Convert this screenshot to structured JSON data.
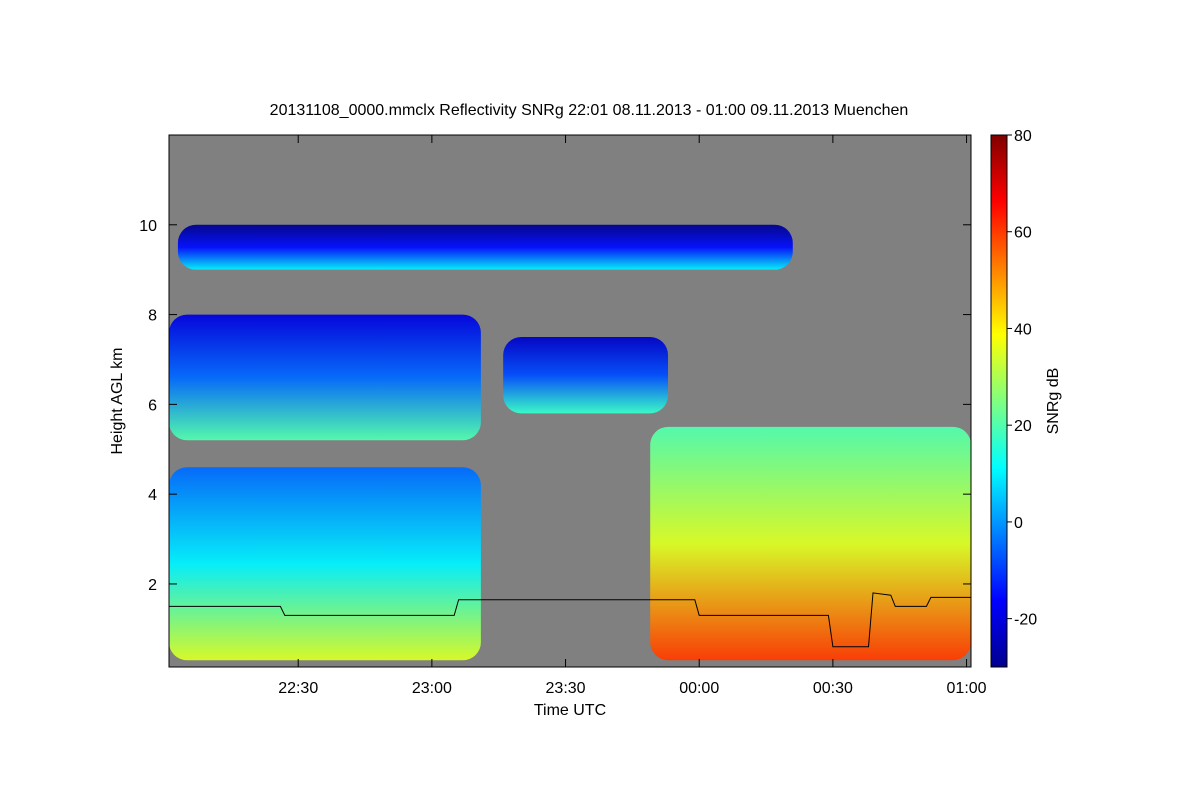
{
  "chart_data": {
    "type": "heatmap",
    "title": "20131108_0000.mmclx Reflectivity SNRg   22:01 08.11.2013 - 01:00 09.11.2013 Muenchen",
    "xlabel": "Time UTC",
    "ylabel": "Height AGL km",
    "colorbar_label": "SNRg dB",
    "x_ticks": [
      {
        "label": "22:30",
        "minutes": 29
      },
      {
        "label": "23:00",
        "minutes": 59
      },
      {
        "label": "23:30",
        "minutes": 89
      },
      {
        "label": "00:00",
        "minutes": 119
      },
      {
        "label": "00:30",
        "minutes": 149
      },
      {
        "label": "01:00",
        "minutes": 179
      }
    ],
    "x_range_minutes": [
      0,
      180
    ],
    "y_ticks": [
      2,
      4,
      6,
      8,
      10
    ],
    "y_range_km": [
      0.15,
      12.0
    ],
    "colorbar_ticks": [
      -20,
      0,
      20,
      40,
      60,
      80
    ],
    "colorbar_range": [
      -30,
      80
    ],
    "no_signal_color": "#808080",
    "colormap": [
      "#00008f",
      "#0000ff",
      "#0080ff",
      "#00ffff",
      "#80ff80",
      "#ffff00",
      "#ff8000",
      "#ff0000",
      "#800000"
    ],
    "echo_regions": [
      {
        "name": "cirrus-top",
        "t0": 2,
        "t1": 140,
        "base_km": 9.0,
        "top_km": 10.0,
        "snr": -15
      },
      {
        "name": "upper-cloud-west",
        "t0": 0,
        "t1": 70,
        "base_km": 5.2,
        "top_km": 8.0,
        "snr": -5
      },
      {
        "name": "upper-cloud-mid",
        "t0": 75,
        "t1": 112,
        "base_km": 5.8,
        "top_km": 7.5,
        "snr": -8
      },
      {
        "name": "lower-cloud-west",
        "t0": 0,
        "t1": 70,
        "base_km": 0.3,
        "top_km": 4.6,
        "snr": 10
      },
      {
        "name": "lower-cloud-east",
        "t0": 108,
        "t1": 180,
        "base_km": 0.3,
        "top_km": 5.5,
        "snr": 35
      }
    ],
    "overlay_line_km": [
      {
        "t": 0,
        "h": 1.5
      },
      {
        "t": 25,
        "h": 1.5
      },
      {
        "t": 26,
        "h": 1.3
      },
      {
        "t": 64,
        "h": 1.3
      },
      {
        "t": 65,
        "h": 1.65
      },
      {
        "t": 118,
        "h": 1.65
      },
      {
        "t": 119,
        "h": 1.3
      },
      {
        "t": 148,
        "h": 1.3
      },
      {
        "t": 149,
        "h": 0.6
      },
      {
        "t": 157,
        "h": 0.6
      },
      {
        "t": 158,
        "h": 1.8
      },
      {
        "t": 162,
        "h": 1.75
      },
      {
        "t": 163,
        "h": 1.5
      },
      {
        "t": 170,
        "h": 1.5
      },
      {
        "t": 171,
        "h": 1.7
      },
      {
        "t": 180,
        "h": 1.7
      }
    ]
  }
}
